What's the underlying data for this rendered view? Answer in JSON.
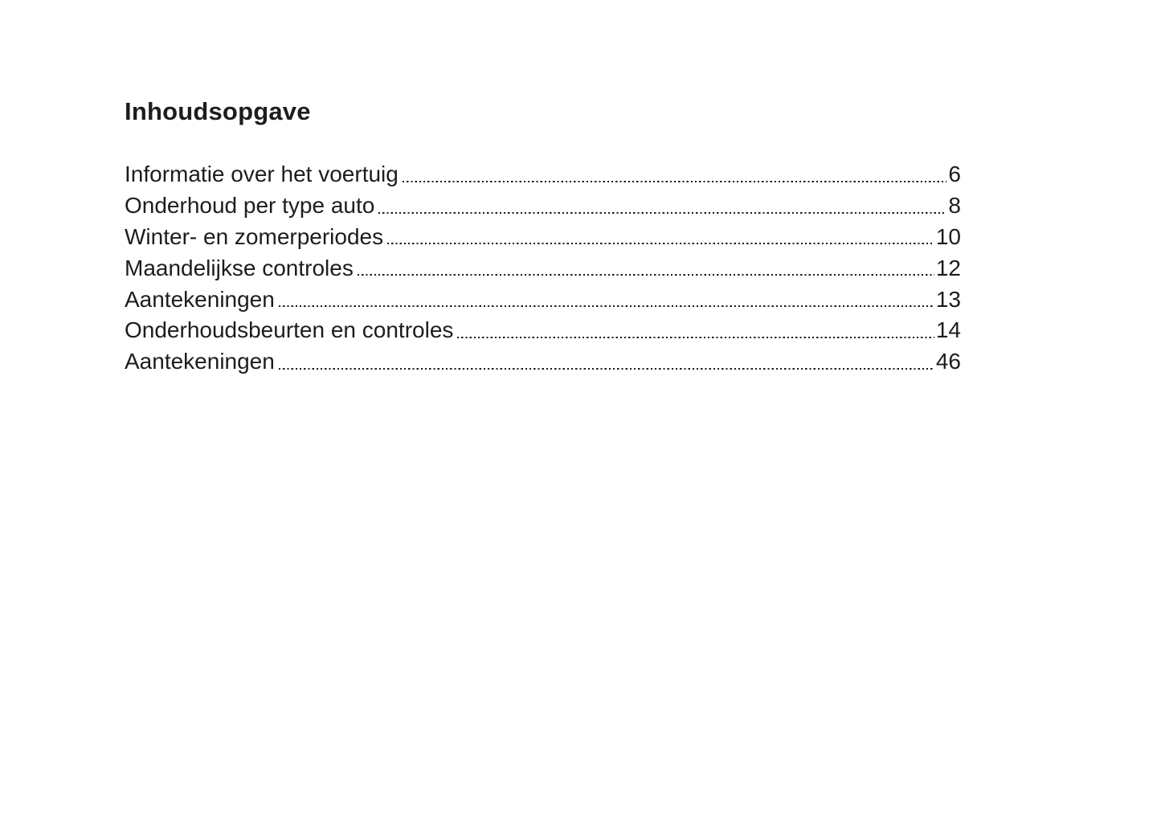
{
  "page": {
    "title": "Inhoudsopgave",
    "background_color": "#ffffff",
    "text_color": "#1d1d1b"
  },
  "toc": {
    "entries": [
      {
        "label": "Informatie over het voertuig",
        "page": "6"
      },
      {
        "label": "Onderhoud per type auto",
        "page": "8"
      },
      {
        "label": "Winter- en zomerperiodes",
        "page": "10"
      },
      {
        "label": "Maandelijkse controles",
        "page": "12"
      },
      {
        "label": "Aantekeningen",
        "page": "13"
      },
      {
        "label": "Onderhoudsbeurten en controles",
        "page": "14"
      },
      {
        "label": "Aantekeningen",
        "page": "46"
      }
    ]
  }
}
